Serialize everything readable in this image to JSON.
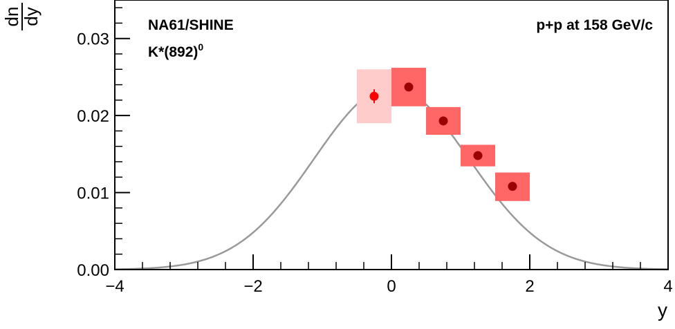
{
  "chart_data": {
    "type": "scatter",
    "title": "",
    "xlabel": "y",
    "ylabel_num": "dn",
    "ylabel_den": "dy",
    "xlim": [
      -4,
      4
    ],
    "ylim": [
      0,
      0.035
    ],
    "x_ticks": [
      {
        "value": -4,
        "label": "−4"
      },
      {
        "value": -2,
        "label": "−2"
      },
      {
        "value": 0,
        "label": "0"
      },
      {
        "value": 2,
        "label": "2"
      },
      {
        "value": 4,
        "label": "4"
      }
    ],
    "y_ticks": [
      {
        "value": 0.0,
        "label": "0.00"
      },
      {
        "value": 0.01,
        "label": "0.01"
      },
      {
        "value": 0.02,
        "label": "0.02"
      },
      {
        "value": 0.03,
        "label": "0.03"
      }
    ],
    "annotations": {
      "experiment": "NA61/SHINE",
      "particle_base": "K*(892)",
      "particle_sup": "0",
      "system": "p+p at 158 GeV/c"
    },
    "fit_curve": {
      "shape": "gaussian",
      "amplitude": 0.0237,
      "mean": 0,
      "sigma": 1.12,
      "color": "#999999"
    },
    "reflected_points": [
      {
        "x": -0.25,
        "y": 0.0225,
        "stat_err": 0.0009,
        "sys_low": 0.019,
        "sys_high": 0.026,
        "box_xmin": -0.5,
        "box_xmax": 0.0
      }
    ],
    "measured_points": [
      {
        "x": 0.25,
        "y": 0.0237,
        "sys_low": 0.0212,
        "sys_high": 0.0262,
        "box_xmin": 0.0,
        "box_xmax": 0.5
      },
      {
        "x": 0.75,
        "y": 0.0193,
        "sys_low": 0.0175,
        "sys_high": 0.0211,
        "box_xmin": 0.5,
        "box_xmax": 1.0
      },
      {
        "x": 1.25,
        "y": 0.0148,
        "sys_low": 0.0134,
        "sys_high": 0.0162,
        "box_xmin": 1.0,
        "box_xmax": 1.5
      },
      {
        "x": 1.75,
        "y": 0.0108,
        "sys_low": 0.0089,
        "sys_high": 0.0126,
        "box_xmin": 1.5,
        "box_xmax": 2.0
      }
    ],
    "colors": {
      "measured_marker": "#990000",
      "measured_box": "#ff6666",
      "reflected_marker": "#ff0000",
      "reflected_box": "#ffcccc"
    }
  }
}
